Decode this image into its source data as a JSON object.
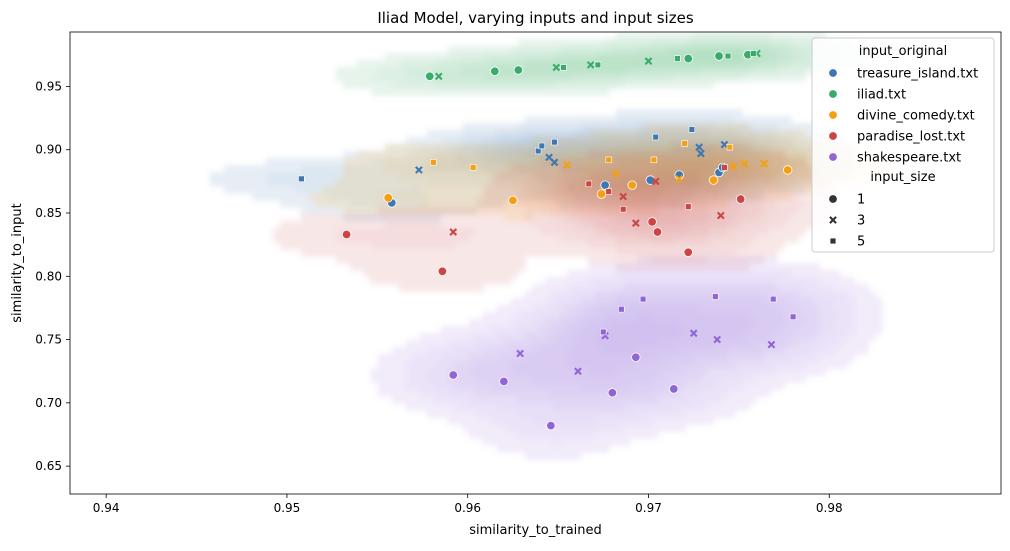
{
  "chart_data": {
    "type": "scatter",
    "title": "Iliad Model, varying inputs and input sizes",
    "xlabel": "similarity_to_trained",
    "ylabel": "similarity_to_input",
    "xlim": [
      0.938,
      0.9895
    ],
    "ylim": [
      0.628,
      0.993
    ],
    "x_ticks": [
      0.94,
      0.95,
      0.96,
      0.97,
      0.98
    ],
    "x_tick_labels": [
      "0.94",
      "0.95",
      "0.96",
      "0.97",
      "0.98"
    ],
    "y_ticks": [
      0.65,
      0.7,
      0.75,
      0.8,
      0.85,
      0.9,
      0.95
    ],
    "y_tick_labels": [
      "0.65",
      "0.70",
      "0.75",
      "0.80",
      "0.85",
      "0.90",
      "0.95"
    ],
    "grid": false,
    "legend_placement": "top-right",
    "legend": {
      "hue_title": "input_original",
      "size_title": "input_size",
      "hue_entries": [
        "treasure_island.txt",
        "iliad.txt",
        "divine_comedy.txt",
        "paradise_lost.txt",
        "shakespeare.txt"
      ],
      "size_entries": [
        {
          "label": "1",
          "marker": "circle"
        },
        {
          "label": "3",
          "marker": "x"
        },
        {
          "label": "5",
          "marker": "square"
        }
      ]
    },
    "kde_contours": true,
    "series": [
      {
        "name": "treasure_island.txt",
        "color": "#3f77b0",
        "points": [
          {
            "x": 0.9558,
            "y": 0.858,
            "size": "1"
          },
          {
            "x": 0.9676,
            "y": 0.872,
            "size": "1"
          },
          {
            "x": 0.9701,
            "y": 0.876,
            "size": "1"
          },
          {
            "x": 0.9717,
            "y": 0.88,
            "size": "1"
          },
          {
            "x": 0.9739,
            "y": 0.882,
            "size": "1"
          },
          {
            "x": 0.9741,
            "y": 0.886,
            "size": "1"
          },
          {
            "x": 0.9573,
            "y": 0.884,
            "size": "3"
          },
          {
            "x": 0.9645,
            "y": 0.894,
            "size": "3"
          },
          {
            "x": 0.9729,
            "y": 0.897,
            "size": "3"
          },
          {
            "x": 0.9728,
            "y": 0.902,
            "size": "3"
          },
          {
            "x": 0.9742,
            "y": 0.904,
            "size": "3"
          },
          {
            "x": 0.9648,
            "y": 0.89,
            "size": "3"
          },
          {
            "x": 0.9508,
            "y": 0.877,
            "size": "5"
          },
          {
            "x": 0.9639,
            "y": 0.899,
            "size": "5"
          },
          {
            "x": 0.9641,
            "y": 0.903,
            "size": "5"
          },
          {
            "x": 0.9648,
            "y": 0.906,
            "size": "5"
          },
          {
            "x": 0.9704,
            "y": 0.91,
            "size": "5"
          },
          {
            "x": 0.9724,
            "y": 0.916,
            "size": "5"
          }
        ]
      },
      {
        "name": "iliad.txt",
        "color": "#3aab6b",
        "points": [
          {
            "x": 0.9579,
            "y": 0.958,
            "size": "1"
          },
          {
            "x": 0.9615,
            "y": 0.962,
            "size": "1"
          },
          {
            "x": 0.9628,
            "y": 0.963,
            "size": "1"
          },
          {
            "x": 0.9722,
            "y": 0.972,
            "size": "1"
          },
          {
            "x": 0.9739,
            "y": 0.974,
            "size": "1"
          },
          {
            "x": 0.9755,
            "y": 0.975,
            "size": "1"
          },
          {
            "x": 0.9584,
            "y": 0.958,
            "size": "3"
          },
          {
            "x": 0.9649,
            "y": 0.965,
            "size": "3"
          },
          {
            "x": 0.9668,
            "y": 0.967,
            "size": "3"
          },
          {
            "x": 0.97,
            "y": 0.97,
            "size": "3"
          },
          {
            "x": 0.976,
            "y": 0.976,
            "size": "3"
          },
          {
            "x": 0.9653,
            "y": 0.965,
            "size": "5"
          },
          {
            "x": 0.9672,
            "y": 0.967,
            "size": "5"
          },
          {
            "x": 0.9716,
            "y": 0.972,
            "size": "5"
          },
          {
            "x": 0.9744,
            "y": 0.974,
            "size": "5"
          },
          {
            "x": 0.9758,
            "y": 0.976,
            "size": "5"
          }
        ]
      },
      {
        "name": "divine_comedy.txt",
        "color": "#f59f12",
        "points": [
          {
            "x": 0.9556,
            "y": 0.862,
            "size": "1"
          },
          {
            "x": 0.9625,
            "y": 0.86,
            "size": "1"
          },
          {
            "x": 0.9674,
            "y": 0.865,
            "size": "1"
          },
          {
            "x": 0.9691,
            "y": 0.872,
            "size": "1"
          },
          {
            "x": 0.9736,
            "y": 0.876,
            "size": "1"
          },
          {
            "x": 0.9777,
            "y": 0.884,
            "size": "1"
          },
          {
            "x": 0.9655,
            "y": 0.888,
            "size": "3"
          },
          {
            "x": 0.9682,
            "y": 0.881,
            "size": "3"
          },
          {
            "x": 0.9717,
            "y": 0.877,
            "size": "3"
          },
          {
            "x": 0.9747,
            "y": 0.887,
            "size": "3"
          },
          {
            "x": 0.9753,
            "y": 0.889,
            "size": "3"
          },
          {
            "x": 0.9764,
            "y": 0.889,
            "size": "3"
          },
          {
            "x": 0.9581,
            "y": 0.89,
            "size": "5"
          },
          {
            "x": 0.9603,
            "y": 0.886,
            "size": "5"
          },
          {
            "x": 0.9678,
            "y": 0.892,
            "size": "5"
          },
          {
            "x": 0.9703,
            "y": 0.892,
            "size": "5"
          },
          {
            "x": 0.972,
            "y": 0.905,
            "size": "5"
          },
          {
            "x": 0.9745,
            "y": 0.902,
            "size": "5"
          }
        ]
      },
      {
        "name": "paradise_lost.txt",
        "color": "#cc4444",
        "points": [
          {
            "x": 0.9533,
            "y": 0.833,
            "size": "1"
          },
          {
            "x": 0.9586,
            "y": 0.804,
            "size": "1"
          },
          {
            "x": 0.9702,
            "y": 0.843,
            "size": "1"
          },
          {
            "x": 0.9705,
            "y": 0.835,
            "size": "1"
          },
          {
            "x": 0.9722,
            "y": 0.819,
            "size": "1"
          },
          {
            "x": 0.9751,
            "y": 0.861,
            "size": "1"
          },
          {
            "x": 0.9592,
            "y": 0.835,
            "size": "3"
          },
          {
            "x": 0.9686,
            "y": 0.863,
            "size": "3"
          },
          {
            "x": 0.9693,
            "y": 0.842,
            "size": "3"
          },
          {
            "x": 0.9704,
            "y": 0.875,
            "size": "3"
          },
          {
            "x": 0.974,
            "y": 0.848,
            "size": "3"
          },
          {
            "x": 0.9667,
            "y": 0.873,
            "size": "5"
          },
          {
            "x": 0.9678,
            "y": 0.867,
            "size": "5"
          },
          {
            "x": 0.9686,
            "y": 0.853,
            "size": "5"
          },
          {
            "x": 0.9722,
            "y": 0.855,
            "size": "5"
          },
          {
            "x": 0.9742,
            "y": 0.886,
            "size": "5"
          }
        ]
      },
      {
        "name": "shakespeare.txt",
        "color": "#9066d6",
        "points": [
          {
            "x": 0.9592,
            "y": 0.722,
            "size": "1"
          },
          {
            "x": 0.962,
            "y": 0.717,
            "size": "1"
          },
          {
            "x": 0.9646,
            "y": 0.682,
            "size": "1"
          },
          {
            "x": 0.968,
            "y": 0.708,
            "size": "1"
          },
          {
            "x": 0.9693,
            "y": 0.736,
            "size": "1"
          },
          {
            "x": 0.9714,
            "y": 0.711,
            "size": "1"
          },
          {
            "x": 0.9629,
            "y": 0.739,
            "size": "3"
          },
          {
            "x": 0.9661,
            "y": 0.725,
            "size": "3"
          },
          {
            "x": 0.9676,
            "y": 0.753,
            "size": "3"
          },
          {
            "x": 0.9725,
            "y": 0.755,
            "size": "3"
          },
          {
            "x": 0.9738,
            "y": 0.75,
            "size": "3"
          },
          {
            "x": 0.9768,
            "y": 0.746,
            "size": "3"
          },
          {
            "x": 0.9675,
            "y": 0.756,
            "size": "5"
          },
          {
            "x": 0.9685,
            "y": 0.774,
            "size": "5"
          },
          {
            "x": 0.9697,
            "y": 0.782,
            "size": "5"
          },
          {
            "x": 0.9737,
            "y": 0.784,
            "size": "5"
          },
          {
            "x": 0.9769,
            "y": 0.782,
            "size": "5"
          },
          {
            "x": 0.978,
            "y": 0.768,
            "size": "5"
          }
        ]
      }
    ]
  }
}
